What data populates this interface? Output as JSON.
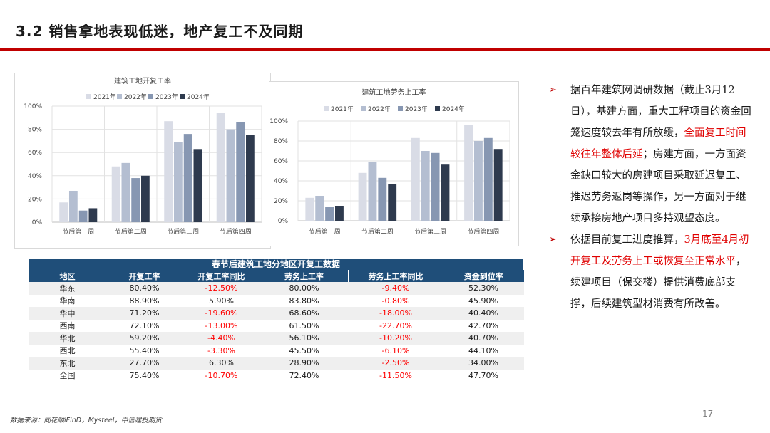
{
  "header": {
    "title": "3.2 销售拿地表现低迷，地产复工不及同期"
  },
  "chart_data": [
    {
      "type": "bar",
      "title": "建筑工地开复工率",
      "categories": [
        "节后第一周",
        "节后第二周",
        "节后第三周",
        "节后第四周"
      ],
      "series": [
        {
          "name": "2021年",
          "color": "#d9dce6",
          "values": [
            17,
            48,
            87,
            94
          ]
        },
        {
          "name": "2022年",
          "color": "#b4bed1",
          "values": [
            27,
            51,
            69,
            80
          ]
        },
        {
          "name": "2023年",
          "color": "#8797b2",
          "values": [
            10,
            38,
            76,
            86
          ]
        },
        {
          "name": "2024年",
          "color": "#2e3a4e",
          "values": [
            12,
            40,
            63,
            75
          ]
        }
      ],
      "ylim": [
        0,
        100
      ],
      "yticks": [
        "0%",
        "20%",
        "40%",
        "60%",
        "80%",
        "100%"
      ],
      "grid": true,
      "legend": "top"
    },
    {
      "type": "bar",
      "title": "建筑工地劳务上工率",
      "categories": [
        "节后第一周",
        "节后第二周",
        "节后第三周",
        "节后第四周"
      ],
      "series": [
        {
          "name": "2021年",
          "color": "#d9dce6",
          "values": [
            23,
            48,
            83,
            96
          ]
        },
        {
          "name": "2022年",
          "color": "#b4bed1",
          "values": [
            25,
            59,
            70,
            80
          ]
        },
        {
          "name": "2023年",
          "color": "#8797b2",
          "values": [
            14,
            43,
            68,
            83
          ]
        },
        {
          "name": "2024年",
          "color": "#2e3a4e",
          "values": [
            15,
            37,
            57,
            72
          ]
        }
      ],
      "ylim": [
        0,
        100
      ],
      "yticks": [
        "0%",
        "20%",
        "40%",
        "60%",
        "80%",
        "100%"
      ],
      "grid": true,
      "legend": "top"
    }
  ],
  "table": {
    "title": "春节后建筑工地分地区开复工数据",
    "headers": [
      "地区",
      "开复工率",
      "开复工率同比",
      "劳务上工率",
      "劳务上工率同比",
      "资金到位率"
    ],
    "rows": [
      [
        "华东",
        "80.40%",
        "-12.50%",
        "80.00%",
        "-9.40%",
        "52.30%"
      ],
      [
        "华南",
        "88.90%",
        "5.90%",
        "83.80%",
        "-0.80%",
        "45.90%"
      ],
      [
        "华中",
        "71.20%",
        "-19.60%",
        "68.60%",
        "-18.00%",
        "40.40%"
      ],
      [
        "西南",
        "72.10%",
        "-13.00%",
        "61.50%",
        "-22.70%",
        "42.70%"
      ],
      [
        "华北",
        "59.20%",
        "-4.40%",
        "56.10%",
        "-10.20%",
        "40.70%"
      ],
      [
        "西北",
        "55.40%",
        "-3.30%",
        "45.50%",
        "-6.10%",
        "44.10%"
      ],
      [
        "东北",
        "27.70%",
        "6.30%",
        "28.90%",
        "-2.50%",
        "34.00%"
      ],
      [
        "全国",
        "75.40%",
        "-10.70%",
        "72.40%",
        "-11.50%",
        "47.70%"
      ]
    ]
  },
  "bullets": [
    {
      "marker": "➢",
      "parts": [
        {
          "text": "据百年建筑网调研数据（截止3月12日），基建方面，重大工程项目的资金回笼速度较去年有所放缓，",
          "highlight": false
        },
        {
          "text": "全面复工时间较往年整体后延",
          "highlight": true
        },
        {
          "text": "；房建方面，一方面资金缺口较大的房建项目采取延迟复工、推迟劳务返岗等操作，另一方面对于继续承接房地产项目多持观望态度。",
          "highlight": false
        }
      ]
    },
    {
      "marker": "➢",
      "parts": [
        {
          "text": "依据目前复工进度推算，",
          "highlight": false
        },
        {
          "text": "3月底至4月初开复工及劳务上工或恢复至正常水平",
          "highlight": true
        },
        {
          "text": "，续建项目（保交楼）提供消费底部支撑，后续建筑型材消费有所改善。",
          "highlight": false
        }
      ]
    }
  ],
  "footer": {
    "source": "数据来源：同花顺iFinD，Mysteel，中信建投期货",
    "page_number": "17"
  },
  "colors": {
    "accent": "#c00000",
    "table_header": "#1f4e79",
    "negative": "#ff0000"
  }
}
